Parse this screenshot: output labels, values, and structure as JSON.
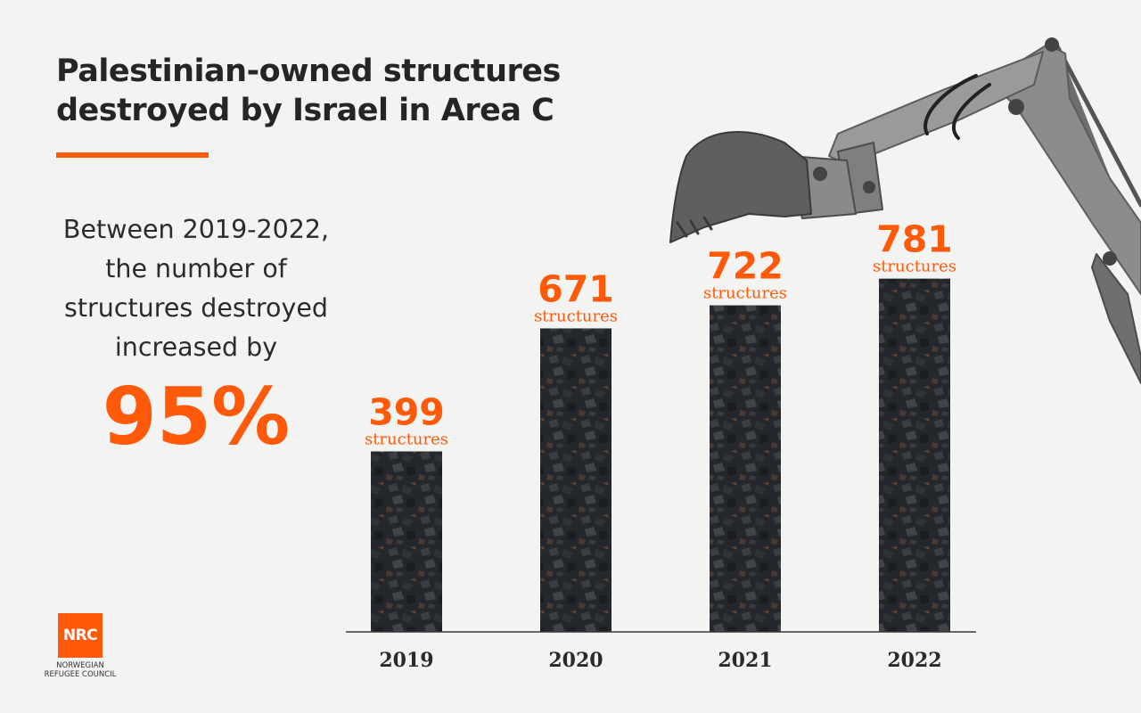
{
  "headline": {
    "title": "Palestinian-owned structures destroyed by Israel in Area C",
    "intro": "Between 2019-2022,\nthe number of\nstructures destroyed\nincreased by",
    "percent": "95%"
  },
  "colors": {
    "accent": "#ff5a0a",
    "text": "#252525",
    "bar": "#24262a",
    "background": "#f3f3f2"
  },
  "chart_data": {
    "type": "bar",
    "categories": [
      "2019",
      "2020",
      "2021",
      "2022"
    ],
    "values": [
      399,
      671,
      722,
      781
    ],
    "value_unit_label": "structures",
    "title": "",
    "xlabel": "",
    "ylabel": "",
    "ylim": [
      0,
      800
    ],
    "grid": false,
    "legend": "none",
    "y_axis_visible": false
  },
  "logo": {
    "text": "NRC",
    "line1": "NORWEGIAN",
    "line2": "REFUGEE COUNCIL"
  },
  "decorations": {
    "background_image": "excavator-arm",
    "bar_fill": "rubble-photo-texture"
  }
}
